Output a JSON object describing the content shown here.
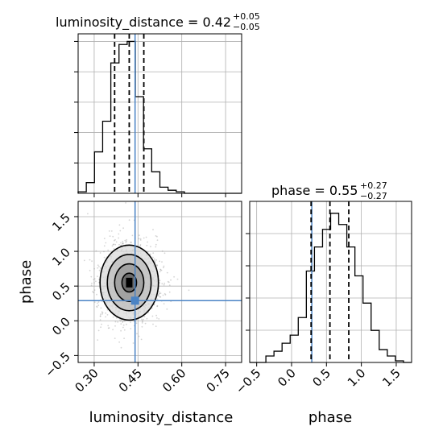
{
  "chart_data": {
    "type": "corner-plot",
    "colors": {
      "truth": "#4a83c4",
      "hist": "#000000",
      "grid": "#b0b0b0",
      "scatter": "#888888"
    },
    "truth": {
      "luminosity_distance": 0.44,
      "phase": 0.29
    },
    "parameters": [
      {
        "name": "luminosity_distance",
        "title_prefix": "luminosity_distance = 0.42",
        "title_sup": "+0.05",
        "title_sub": "−0.05",
        "median": 0.42,
        "q16": 0.37,
        "q84": 0.47,
        "range": [
          0.245,
          0.805
        ],
        "ticks": [
          0.3,
          0.45,
          0.6,
          0.75
        ],
        "tick_labels": [
          "0.30",
          "0.45",
          "0.60",
          "0.75"
        ],
        "hist_type": "step",
        "hist_bin_edges": [
          0.245,
          0.273,
          0.301,
          0.329,
          0.357,
          0.385,
          0.413,
          0.441,
          0.469,
          0.497,
          0.525,
          0.553,
          0.581,
          0.609,
          0.637,
          0.665,
          0.693,
          0.721,
          0.749,
          0.777,
          0.805
        ],
        "hist_counts": [
          0.01,
          0.07,
          0.27,
          0.47,
          0.85,
          0.97,
          0.99,
          0.63,
          0.29,
          0.14,
          0.04,
          0.02,
          0.01,
          0.0,
          0.0,
          0.0,
          0.0,
          0.0,
          0.0,
          0.0
        ]
      },
      {
        "name": "phase",
        "title_prefix": "phase = 0.55",
        "title_sup": "+0.27",
        "title_sub": "−0.27",
        "median": 0.55,
        "q16": 0.28,
        "q84": 0.82,
        "range": [
          -0.6,
          1.72
        ],
        "ticks": [
          -0.5,
          0.0,
          0.5,
          1.0,
          1.5
        ],
        "tick_labels": [
          "−0.5",
          "0.0",
          "0.5",
          "1.0",
          "1.5"
        ],
        "hist_type": "step",
        "hist_bin_edges": [
          -0.6,
          -0.484,
          -0.368,
          -0.252,
          -0.136,
          -0.02,
          0.096,
          0.212,
          0.328,
          0.444,
          0.56,
          0.676,
          0.792,
          0.908,
          1.024,
          1.14,
          1.256,
          1.372,
          1.488,
          1.604,
          1.72
        ],
        "hist_counts": [
          0.0,
          0.0,
          0.04,
          0.07,
          0.12,
          0.17,
          0.28,
          0.57,
          0.72,
          0.83,
          0.93,
          0.86,
          0.72,
          0.54,
          0.37,
          0.2,
          0.08,
          0.04,
          0.01,
          0.0
        ]
      }
    ],
    "joint": {
      "x": "luminosity_distance",
      "y": "phase",
      "center": [
        0.42,
        0.55
      ],
      "sigma": [
        0.05,
        0.27
      ],
      "contour_levels_sigma": [
        0.5,
        1.0,
        1.5,
        2.0
      ],
      "yticks": [
        -0.5,
        0.0,
        0.5,
        1.0,
        1.5
      ],
      "ytick_labels": [
        "−0.5",
        "0.0",
        "0.5",
        "1.0",
        "1.5"
      ],
      "ylabel": "phase",
      "xlabel": "luminosity_distance"
    },
    "grid": true
  }
}
